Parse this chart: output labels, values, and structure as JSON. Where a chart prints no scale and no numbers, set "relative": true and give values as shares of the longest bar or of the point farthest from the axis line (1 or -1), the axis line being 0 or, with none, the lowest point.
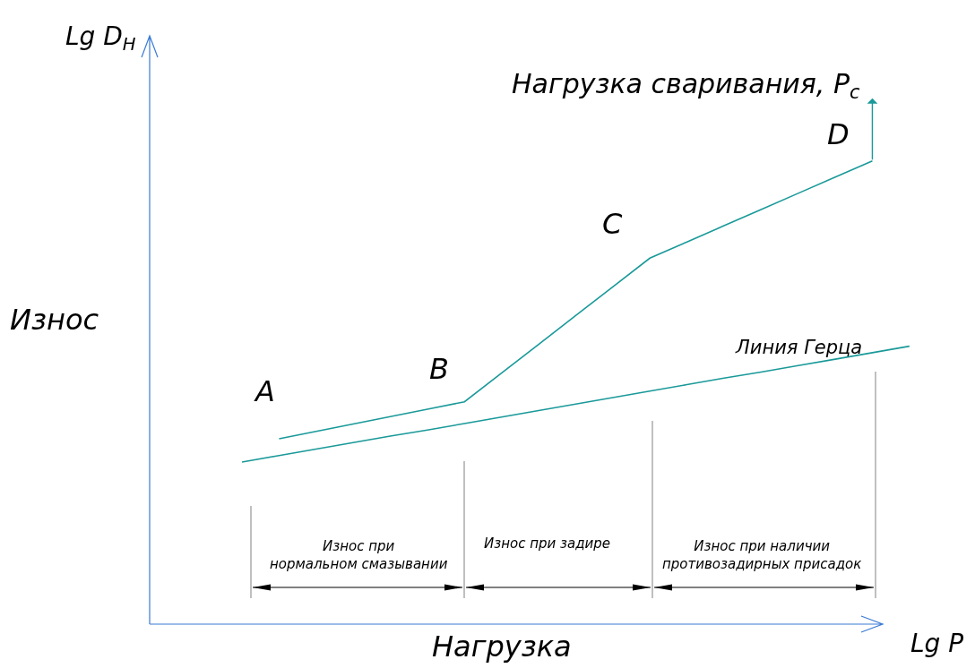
{
  "chart_data": {
    "type": "line",
    "relative": true,
    "xlabel": "Нагрузка",
    "ylabel": "Износ",
    "marker": "none",
    "line_style": "solid",
    "categories": [
      null,
      null,
      null,
      null,
      null,
      null,
      null,
      null,
      null,
      null,
      null,
      null,
      null,
      null,
      null,
      null,
      null,
      null,
      null
    ],
    "series": [
      {
        "color": "#1a9999",
        "values": [
          null,
          0.4,
          0.416,
          0.432,
          0.448,
          0.464,
          0.48,
          0.542,
          0.604,
          0.666,
          0.728,
          0.79,
          0.825,
          0.86,
          0.895,
          0.93,
          0.965,
          1.0,
          null
        ]
      },
      {
        "name": "Линия Герца",
        "color": "#1a9999",
        "values": [
          0.35,
          0.364,
          0.378,
          0.392,
          0.406,
          0.419,
          0.433,
          0.447,
          0.461,
          0.475,
          0.489,
          0.503,
          0.517,
          0.531,
          0.544,
          0.558,
          0.572,
          0.586,
          0.6
        ]
      }
    ],
    "annotations": [
      "A",
      "B",
      "C",
      "D",
      "Нагрузка сваривания, P$_{c}$",
      "Lg D$_{H}$",
      "Lg P",
      "Износ при\nнормальном смазывании",
      "Износ при задире",
      "Износ при наличии\nпротивозадирных присадок"
    ]
  }
}
